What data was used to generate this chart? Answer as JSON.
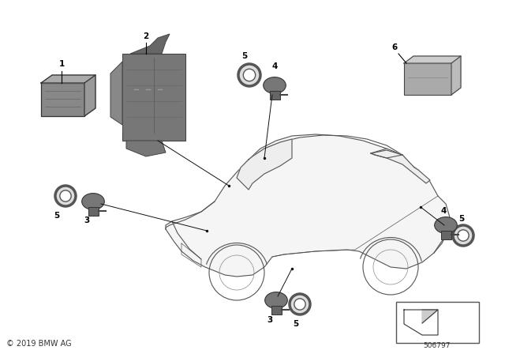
{
  "background_color": "#ffffff",
  "copyright_text": "© 2019 BMW AG",
  "part_number": "506797",
  "fig_width": 6.4,
  "fig_height": 4.48,
  "dpi": 100,
  "car_edge": "#555555",
  "car_fill": "#f5f5f5",
  "part_edge": "#444444",
  "part_fill_dark": "#888888",
  "part_fill_mid": "#aaaaaa",
  "part_fill_light": "#cccccc",
  "label_color": "#000000",
  "line_color": "#000000"
}
